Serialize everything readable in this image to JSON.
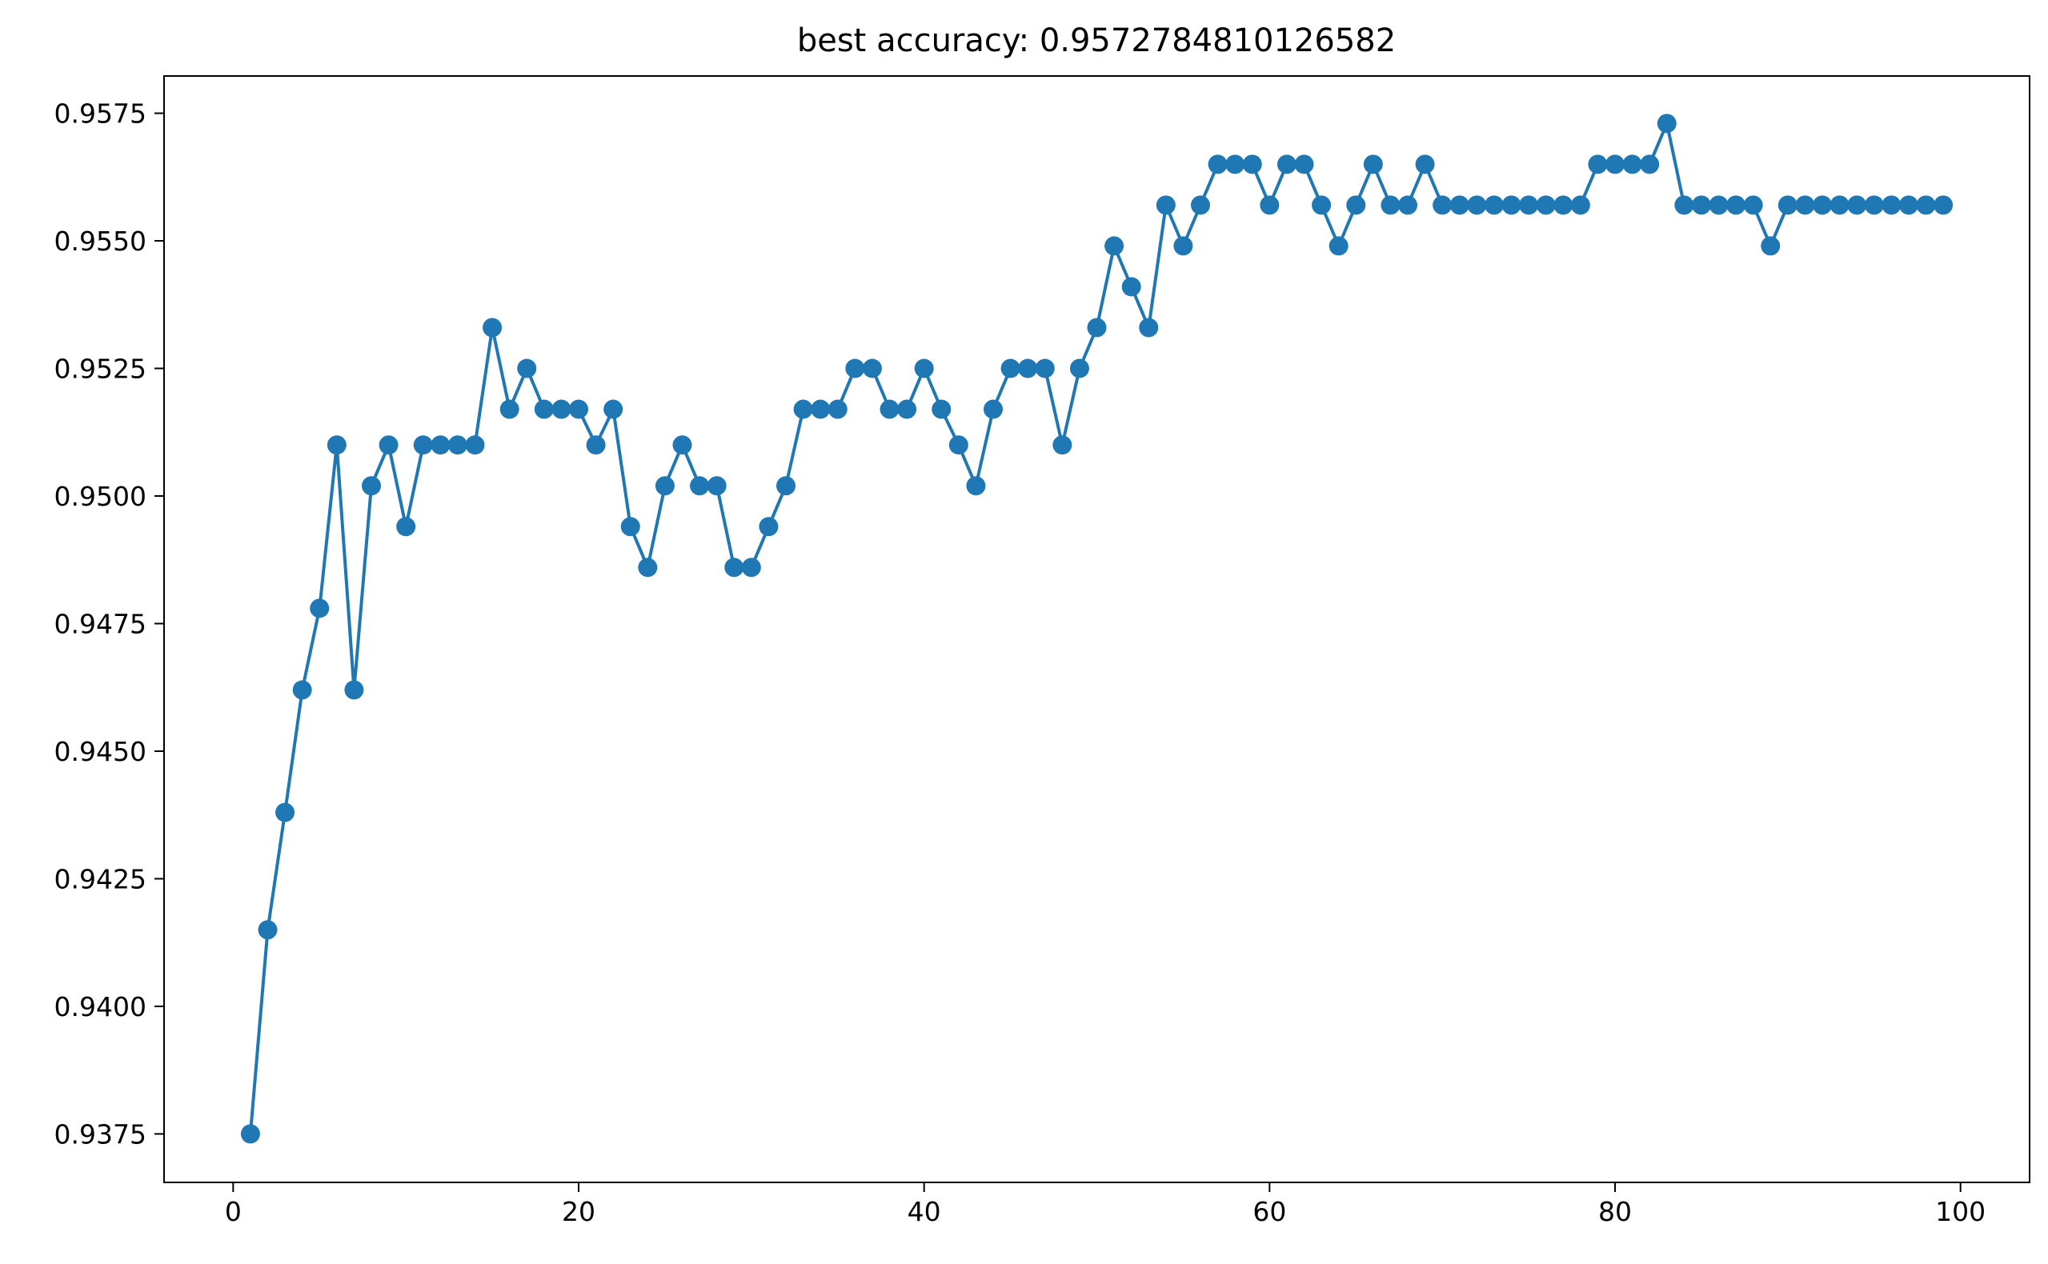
{
  "chart_data": {
    "type": "line",
    "title": "best accuracy: 0.9572784810126582",
    "xlabel": "",
    "ylabel": "",
    "xlim": [
      -4,
      104
    ],
    "ylim": [
      0.93655,
      0.95823
    ],
    "xticks": [
      0,
      20,
      40,
      60,
      80,
      100
    ],
    "yticks": [
      0.9375,
      0.94,
      0.9425,
      0.945,
      0.9475,
      0.95,
      0.9525,
      0.955,
      0.9575
    ],
    "ytick_labels": [
      "0.9375",
      "0.9400",
      "0.9425",
      "0.9450",
      "0.9475",
      "0.9500",
      "0.9525",
      "0.9550",
      "0.9575"
    ],
    "grid": false,
    "color": "#1f77b4",
    "marker": "circle",
    "series": [
      {
        "x": [
          1,
          2,
          3,
          4,
          5,
          6,
          7,
          8,
          9,
          10,
          11,
          12,
          13,
          14,
          15,
          16,
          17,
          18,
          19,
          20,
          21,
          22,
          23,
          24,
          25,
          26,
          27,
          28,
          29,
          30,
          31,
          32,
          33,
          34,
          35,
          36,
          37,
          38,
          39,
          40,
          41,
          42,
          43,
          44,
          45,
          46,
          47,
          48,
          49,
          50,
          51,
          52,
          53,
          54,
          55,
          56,
          57,
          58,
          59,
          60,
          61,
          62,
          63,
          64,
          65,
          66,
          67,
          68,
          69,
          70,
          71,
          72,
          73,
          74,
          75,
          76,
          77,
          78,
          79,
          80,
          81,
          82,
          83,
          84,
          85,
          86,
          87,
          88,
          89,
          90,
          91,
          92,
          93,
          94,
          95,
          96,
          97,
          98,
          99
        ],
        "values": [
          0.9375,
          0.9415,
          0.9438,
          0.9462,
          0.9478,
          0.951,
          0.9462,
          0.9502,
          0.951,
          0.9494,
          0.951,
          0.951,
          0.951,
          0.951,
          0.9533,
          0.9517,
          0.9525,
          0.9517,
          0.9517,
          0.9517,
          0.951,
          0.9517,
          0.9494,
          0.9486,
          0.9502,
          0.951,
          0.9502,
          0.9502,
          0.9486,
          0.9486,
          0.9494,
          0.9502,
          0.9517,
          0.9517,
          0.9517,
          0.9525,
          0.9525,
          0.9517,
          0.9517,
          0.9525,
          0.9517,
          0.951,
          0.9502,
          0.9517,
          0.9525,
          0.9525,
          0.9525,
          0.951,
          0.9525,
          0.9533,
          0.9549,
          0.9541,
          0.9533,
          0.9557,
          0.9549,
          0.9557,
          0.9565,
          0.9565,
          0.9565,
          0.9557,
          0.9565,
          0.9565,
          0.9557,
          0.9549,
          0.9557,
          0.9565,
          0.9557,
          0.9557,
          0.9565,
          0.9557,
          0.9557,
          0.9557,
          0.9557,
          0.9557,
          0.9557,
          0.9557,
          0.9557,
          0.9557,
          0.9565,
          0.9565,
          0.9565,
          0.9565,
          0.9573,
          0.9557,
          0.9557,
          0.9557,
          0.9557,
          0.9557,
          0.9549,
          0.9557,
          0.9557,
          0.9557,
          0.9557,
          0.9557,
          0.9557,
          0.9557,
          0.9557,
          0.9557,
          0.9557
        ]
      }
    ]
  }
}
